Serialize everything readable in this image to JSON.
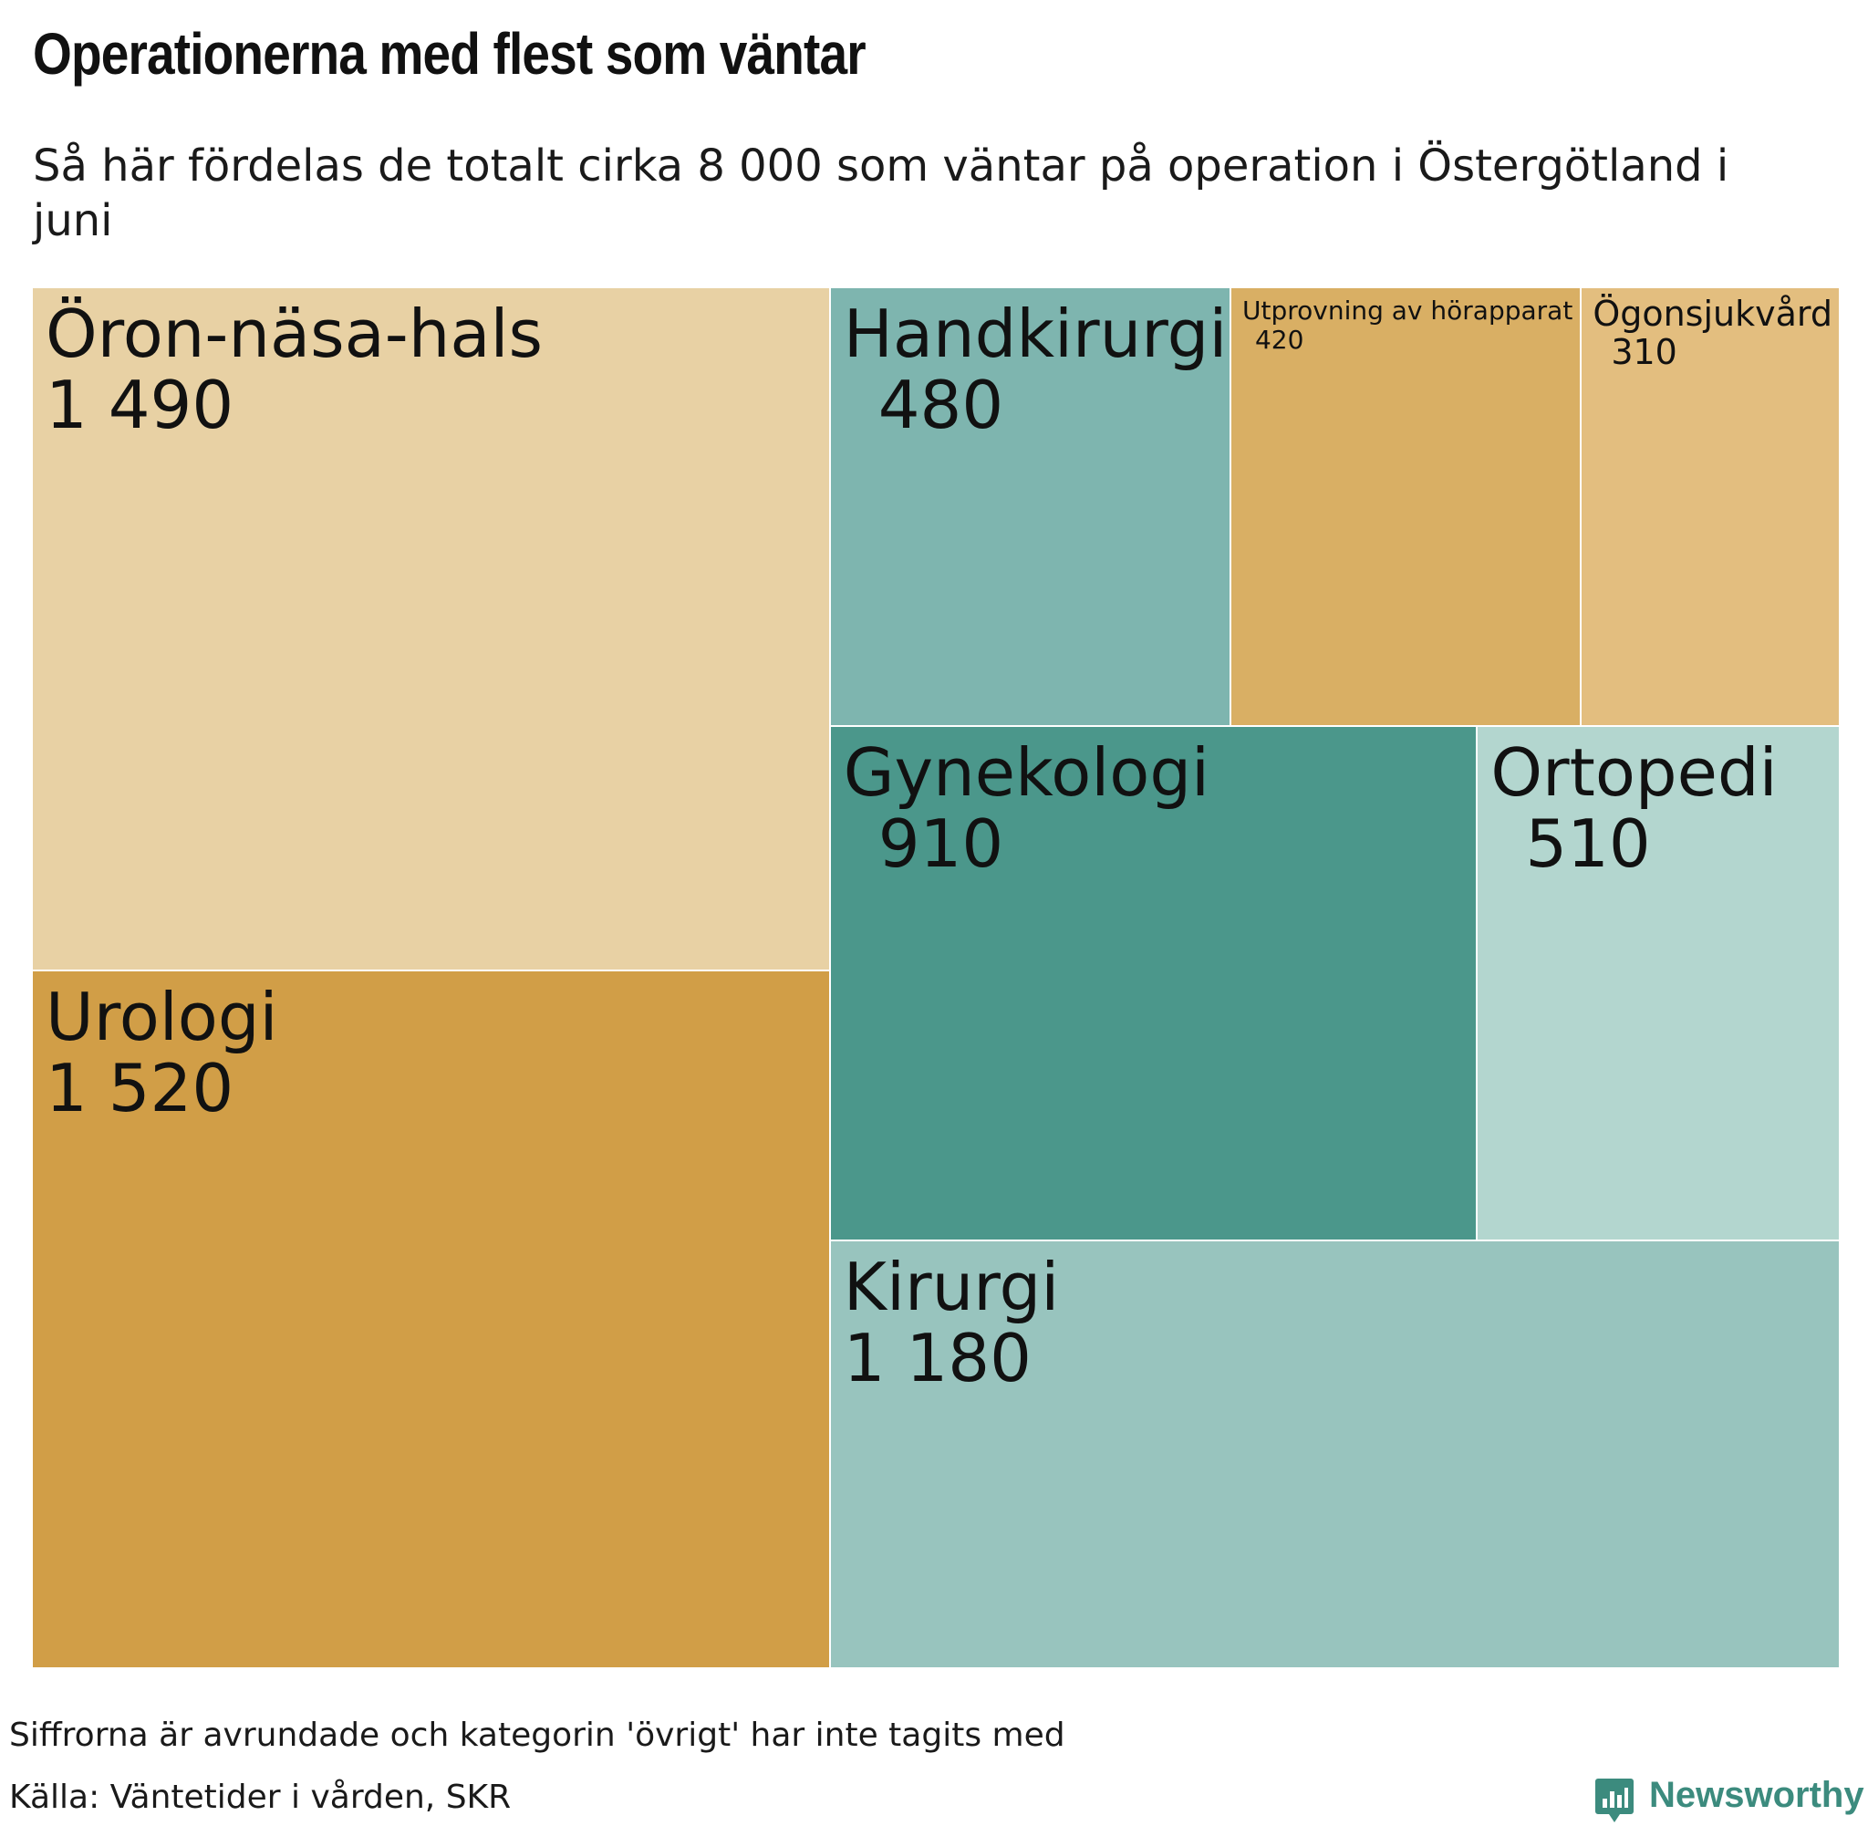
{
  "title": "Operationerna med flest som väntar",
  "subtitle": "Så här fördelas de totalt cirka 8 000 som väntar på operation i Östergötland i juni",
  "note": "Siffrorna är avrundade och kategorin 'övrigt' har inte tagits med",
  "source": "Källa: Väntetider i vården, SKR",
  "brand": "Newsworthy",
  "colors": {
    "brand": "#3c8b7e"
  },
  "chart_data": {
    "type": "treemap",
    "title": "Operationerna med flest som väntar",
    "items": [
      {
        "label": "Öron-näsa-hals",
        "value": 1490,
        "value_label": "1 490",
        "color": "#e8d1a4"
      },
      {
        "label": "Urologi",
        "value": 1520,
        "value_label": "1 520",
        "color": "#d19e47"
      },
      {
        "label": "Handkirurgi",
        "value": 480,
        "value_label": "480",
        "color": "#7eb5af"
      },
      {
        "label": "Utprovning av hörapparat",
        "value": 420,
        "value_label": "420",
        "color": "#d9af64"
      },
      {
        "label": "Ögonsjukvård",
        "value": 310,
        "value_label": "310",
        "color": "#e3be7f"
      },
      {
        "label": "Gynekologi",
        "value": 910,
        "value_label": "910",
        "color": "#4b978b"
      },
      {
        "label": "Ortopedi",
        "value": 510,
        "value_label": "510",
        "color": "#b3d6cf"
      },
      {
        "label": "Kirurgi",
        "value": 1180,
        "value_label": "1 180",
        "color": "#98c4be"
      }
    ]
  }
}
